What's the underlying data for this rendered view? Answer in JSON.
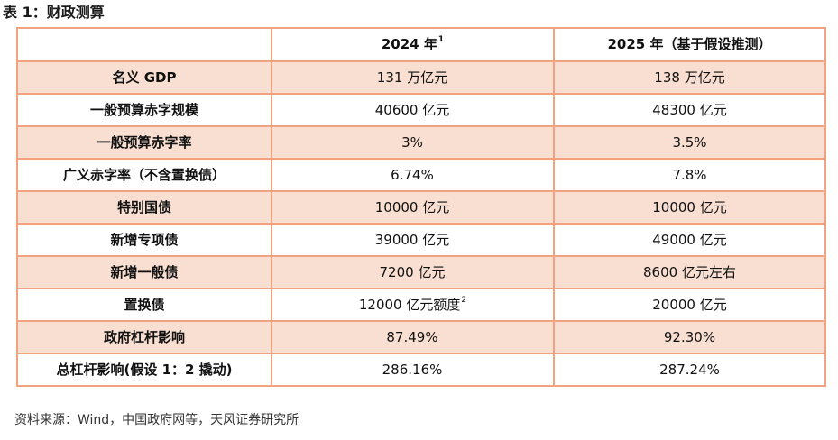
{
  "title": "表 1：财政测算",
  "header": {
    "col1": "",
    "col2": "2024 年",
    "col2_sup": "1",
    "col3": "2025 年（基于假设推测）"
  },
  "rows": [
    {
      "label": "名义 GDP",
      "v2024": "131 万亿元",
      "v2024_sup": "",
      "v2025": "138 万亿元"
    },
    {
      "label": "一般预算赤字规模",
      "v2024": "40600 亿元",
      "v2024_sup": "",
      "v2025": "48300 亿元"
    },
    {
      "label": "一般预算赤字率",
      "v2024": "3%",
      "v2024_sup": "",
      "v2025": "3.5%"
    },
    {
      "label": "广义赤字率（不含置换债）",
      "v2024": "6.74%",
      "v2024_sup": "",
      "v2025": "7.8%"
    },
    {
      "label": "特别国债",
      "v2024": "10000 亿元",
      "v2024_sup": "",
      "v2025": "10000 亿元"
    },
    {
      "label": "新增专项债",
      "v2024": "39000 亿元",
      "v2024_sup": "",
      "v2025": "49000 亿元"
    },
    {
      "label": "新增一般债",
      "v2024": "7200 亿元",
      "v2024_sup": "",
      "v2025": "8600 亿元左右"
    },
    {
      "label": "置换债",
      "v2024": "12000 亿元额度",
      "v2024_sup": "2",
      "v2025": "20000 亿元"
    },
    {
      "label": "政府杠杆影响",
      "v2024": "87.49%",
      "v2024_sup": "",
      "v2025": "92.30%"
    },
    {
      "label": "总杠杆影响(假设 1：2 撬动)",
      "v2024": "286.16%",
      "v2024_sup": "",
      "v2025": "287.24%"
    }
  ],
  "source": "资料来源：Wind，中国政府网等，天风证券研究所",
  "colors": {
    "border": "#f3a27f",
    "shaded_row": "#f9dfd1",
    "plain_row": "#ffffff"
  }
}
